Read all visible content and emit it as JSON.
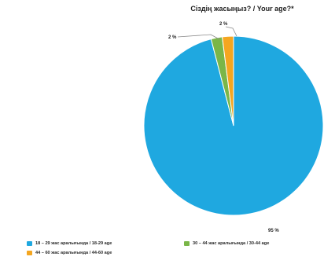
{
  "chart_data": {
    "type": "pie",
    "title": "Сіздің жасыңыз? / Your age?*",
    "slices": [
      {
        "label": "18 – 29 жас аралығында / 18-29 age",
        "value": 95,
        "display": "95 %",
        "color": "#1fa8e0"
      },
      {
        "label": "30 – 44 жас аралығында / 30-44 age",
        "value": 2,
        "display": "2 %",
        "color": "#7ab648"
      },
      {
        "label": "44 – 60 жас аралығында / 44-60 age",
        "value": 2,
        "display": "2 %",
        "color": "#f4a620"
      }
    ],
    "legend_position": "bottom"
  }
}
